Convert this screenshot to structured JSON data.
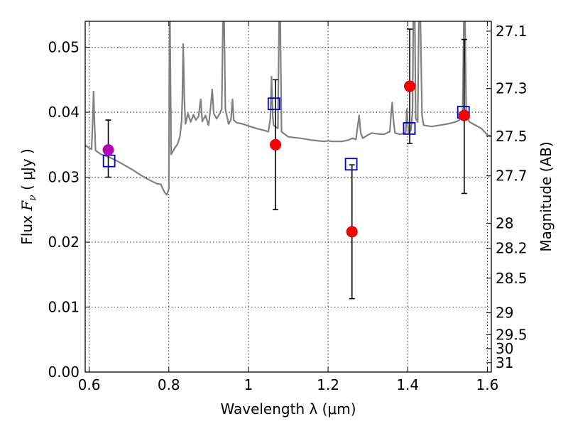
{
  "chart_data": {
    "type": "scatter",
    "xlabel": "Wavelength  λ (μm)",
    "ylabel": "Flux  F_ν  ( μJy )",
    "ylabel_parts": {
      "pre": "Flux  ",
      "var": "F",
      "sub": "ν",
      "post": "  ( μJy )"
    },
    "y2label": "Magnitude (AB)",
    "xlim": [
      0.59,
      1.61
    ],
    "ylim": [
      0.0,
      0.054
    ],
    "grid": true,
    "xticks": [
      0.6,
      0.8,
      1.0,
      1.2,
      1.4,
      1.6
    ],
    "xtick_labels": [
      "0.6",
      "0.8",
      "1",
      "1.2",
      "1.4",
      "1.6"
    ],
    "yticks": [
      0.0,
      0.01,
      0.02,
      0.03,
      0.04,
      0.05
    ],
    "ytick_labels": [
      "0.00",
      "0.01",
      "0.02",
      "0.03",
      "0.04",
      "0.05"
    ],
    "mag_ticks": [
      27.1,
      27.3,
      27.5,
      27.7,
      28,
      28.2,
      28.5,
      29,
      29.5,
      30,
      31
    ],
    "mag_tick_labels": [
      "27.1",
      "27.3",
      "27.5",
      "27.7",
      "28",
      "28.2",
      "28.5",
      "29",
      "29.5",
      "30",
      "31"
    ],
    "colors": {
      "template": "#808080",
      "observed": "#ff0000",
      "observed_edge": "#cc0000",
      "model": "#0000cc",
      "overlap": "#b400b4",
      "errorbar": "#000000"
    },
    "series": [
      {
        "marker": "circle",
        "color": "#ff0000",
        "points": [
          {
            "x": 0.648,
            "y": 0.0342,
            "yerr_low": 0.0042,
            "yerr_high": 0.0046,
            "color": "#b400b4"
          },
          {
            "x": 1.068,
            "y": 0.035,
            "yerr_low": 0.01,
            "yerr_high": 0.01
          },
          {
            "x": 1.26,
            "y": 0.0216,
            "yerr_low": 0.0103,
            "yerr_high": 0.0103
          },
          {
            "x": 1.405,
            "y": 0.044,
            "yerr_low": 0.0088,
            "yerr_high": 0.0088
          },
          {
            "x": 1.542,
            "y": 0.0395,
            "yerr_low": 0.012,
            "yerr_high": 0.0117
          }
        ]
      },
      {
        "marker": "open-square",
        "color": "#0000cc",
        "points": [
          {
            "x": 0.65,
            "y": 0.0325
          },
          {
            "x": 1.064,
            "y": 0.0413
          },
          {
            "x": 1.258,
            "y": 0.032
          },
          {
            "x": 1.404,
            "y": 0.0375
          },
          {
            "x": 1.54,
            "y": 0.04
          }
        ]
      },
      {
        "marker": "line",
        "color": "#808080",
        "points": [
          [
            0.59,
            0.0349
          ],
          [
            0.6,
            0.0345
          ],
          [
            0.606,
            0.0343
          ],
          [
            0.609,
            0.039
          ],
          [
            0.611,
            0.0432
          ],
          [
            0.613,
            0.039
          ],
          [
            0.616,
            0.0341
          ],
          [
            0.63,
            0.0335
          ],
          [
            0.65,
            0.0331
          ],
          [
            0.67,
            0.0325
          ],
          [
            0.69,
            0.0318
          ],
          [
            0.71,
            0.0311
          ],
          [
            0.73,
            0.0303
          ],
          [
            0.75,
            0.0296
          ],
          [
            0.77,
            0.029
          ],
          [
            0.78,
            0.0289
          ],
          [
            0.785,
            0.0282
          ],
          [
            0.79,
            0.0276
          ],
          [
            0.795,
            0.0273
          ],
          [
            0.8,
            0.0282
          ],
          [
            0.802,
            0.054
          ],
          [
            0.803,
            0.054
          ],
          [
            0.806,
            0.0335
          ],
          [
            0.815,
            0.0345
          ],
          [
            0.822,
            0.0351
          ],
          [
            0.828,
            0.0363
          ],
          [
            0.832,
            0.0385
          ],
          [
            0.834,
            0.042
          ],
          [
            0.836,
            0.0505
          ],
          [
            0.839,
            0.042
          ],
          [
            0.842,
            0.0382
          ],
          [
            0.848,
            0.0398
          ],
          [
            0.855,
            0.0385
          ],
          [
            0.862,
            0.0396
          ],
          [
            0.868,
            0.0388
          ],
          [
            0.875,
            0.0394
          ],
          [
            0.88,
            0.042
          ],
          [
            0.884,
            0.0386
          ],
          [
            0.892,
            0.0395
          ],
          [
            0.9,
            0.038
          ],
          [
            0.905,
            0.0407
          ],
          [
            0.909,
            0.0435
          ],
          [
            0.913,
            0.0398
          ],
          [
            0.92,
            0.039
          ],
          [
            0.928,
            0.0398
          ],
          [
            0.933,
            0.0405
          ],
          [
            0.936,
            0.054
          ],
          [
            0.939,
            0.054
          ],
          [
            0.942,
            0.0405
          ],
          [
            0.95,
            0.0382
          ],
          [
            0.956,
            0.0388
          ],
          [
            0.96,
            0.042
          ],
          [
            0.963,
            0.0388
          ],
          [
            0.97,
            0.0384
          ],
          [
            0.985,
            0.0382
          ],
          [
            1.0,
            0.0379
          ],
          [
            1.02,
            0.0375
          ],
          [
            1.04,
            0.0372
          ],
          [
            1.05,
            0.037
          ],
          [
            1.055,
            0.039
          ],
          [
            1.058,
            0.0455
          ],
          [
            1.061,
            0.0395
          ],
          [
            1.063,
            0.038
          ],
          [
            1.074,
            0.0375
          ],
          [
            1.077,
            0.054
          ],
          [
            1.08,
            0.054
          ],
          [
            1.083,
            0.037
          ],
          [
            1.1,
            0.0362
          ],
          [
            1.13,
            0.036
          ],
          [
            1.16,
            0.0357
          ],
          [
            1.19,
            0.0355
          ],
          [
            1.2,
            0.0356
          ],
          [
            1.21,
            0.0355
          ],
          [
            1.235,
            0.0355
          ],
          [
            1.25,
            0.0357
          ],
          [
            1.262,
            0.036
          ],
          [
            1.27,
            0.0358
          ],
          [
            1.278,
            0.0395
          ],
          [
            1.282,
            0.0368
          ],
          [
            1.287,
            0.036
          ],
          [
            1.3,
            0.0365
          ],
          [
            1.31,
            0.0368
          ],
          [
            1.32,
            0.0367
          ],
          [
            1.34,
            0.0366
          ],
          [
            1.355,
            0.037
          ],
          [
            1.358,
            0.0395
          ],
          [
            1.361,
            0.0415
          ],
          [
            1.364,
            0.039
          ],
          [
            1.368,
            0.0368
          ],
          [
            1.38,
            0.0366
          ],
          [
            1.395,
            0.0368
          ],
          [
            1.398,
            0.0405
          ],
          [
            1.402,
            0.0368
          ],
          [
            1.408,
            0.0372
          ],
          [
            1.412,
            0.04
          ],
          [
            1.414,
            0.054
          ],
          [
            1.418,
            0.054
          ],
          [
            1.42,
            0.039
          ],
          [
            1.425,
            0.0385
          ],
          [
            1.428,
            0.054
          ],
          [
            1.432,
            0.054
          ],
          [
            1.436,
            0.0395
          ],
          [
            1.44,
            0.038
          ],
          [
            1.46,
            0.0378
          ],
          [
            1.48,
            0.038
          ],
          [
            1.5,
            0.0382
          ],
          [
            1.52,
            0.0385
          ],
          [
            1.53,
            0.0388
          ],
          [
            1.538,
            0.04
          ],
          [
            1.541,
            0.054
          ],
          [
            1.544,
            0.054
          ],
          [
            1.547,
            0.0395
          ],
          [
            1.555,
            0.0385
          ],
          [
            1.57,
            0.038
          ],
          [
            1.585,
            0.0375
          ],
          [
            1.6,
            0.0365
          ],
          [
            1.61,
            0.0363
          ]
        ]
      }
    ]
  }
}
